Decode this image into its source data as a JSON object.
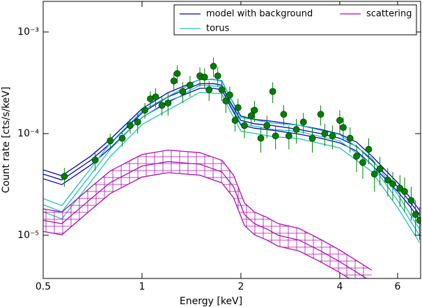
{
  "chart_data": {
    "type": "line",
    "xlabel": "Energy [keV]",
    "ylabel": "Count rate [cts/s/keV]",
    "xlog": true,
    "ylog": true,
    "xlim": [
      0.5,
      7.05
    ],
    "ylim": [
      3.76e-06,
      0.002
    ],
    "xticks": [
      0.5,
      1,
      2,
      4,
      6
    ],
    "yticks": [
      {
        "value": 1e-05,
        "label": "10⁻⁵"
      },
      {
        "value": 0.0001,
        "label": "10⁻⁴"
      },
      {
        "value": 0.001,
        "label": "10⁻³"
      }
    ],
    "legend": "upper right",
    "series": [
      {
        "name": "model with background",
        "color": "#0000cc",
        "x": [
          0.5,
          0.57,
          0.7,
          0.8,
          1.0,
          1.2,
          1.5,
          1.65,
          1.75,
          1.85,
          2.0,
          2.2,
          2.5,
          3.0,
          3.5,
          4.0,
          4.5,
          5.0,
          5.5,
          6.0,
          6.5,
          7.0
        ],
        "values": [
          4e-05,
          3.5e-05,
          5.5e-05,
          8e-05,
          0.00016,
          0.00023,
          0.00031,
          0.00031,
          0.0003,
          0.00021,
          0.000135,
          0.000125,
          0.00012,
          0.00011,
          0.0001,
          9e-05,
          7.5e-05,
          5.5e-05,
          4e-05,
          3e-05,
          2.2e-05,
          1.6e-05
        ],
        "lower": [
          3.6e-05,
          3.15e-05,
          4.95e-05,
          7.2e-05,
          0.000144,
          0.000207,
          0.000279,
          0.000279,
          0.00027,
          0.000189,
          0.000122,
          0.000113,
          0.000108,
          9.9e-05,
          9e-05,
          8.1e-05,
          6.75e-05,
          4.95e-05,
          3.6e-05,
          2.7e-05,
          1.98e-05,
          1.44e-05
        ],
        "upper": [
          4.4e-05,
          3.85e-05,
          6.05e-05,
          8.8e-05,
          0.000176,
          0.000253,
          0.000341,
          0.000341,
          0.00033,
          0.000231,
          0.000149,
          0.000138,
          0.000132,
          0.000121,
          0.00011,
          9.9e-05,
          8.25e-05,
          6.05e-05,
          4.4e-05,
          3.3e-05,
          2.42e-05,
          1.76e-05
        ]
      },
      {
        "name": "torus",
        "color": "#20c0c0",
        "x": [
          0.5,
          0.57,
          0.7,
          0.8,
          1.0,
          1.5,
          1.75,
          1.85,
          2.0,
          2.5,
          3.0,
          4.0,
          5.0,
          6.0,
          7.0
        ],
        "values": [
          2e-05,
          1.7e-05,
          4e-05,
          7e-05,
          0.000145,
          0.0003,
          0.00029,
          0.0002,
          0.000125,
          0.00011,
          0.000105,
          8.5e-05,
          5e-05,
          2.2e-05,
          1e-05
        ],
        "lower": [
          1.7e-05,
          1.45e-05,
          3.4e-05,
          5.95e-05,
          0.000123,
          0.000255,
          0.000247,
          0.00017,
          0.000106,
          9.35e-05,
          8.93e-05,
          7.23e-05,
          4.25e-05,
          1.87e-05,
          8.5e-06
        ],
        "upper": [
          2.3e-05,
          1.96e-05,
          4.6e-05,
          8.05e-05,
          0.000167,
          0.000345,
          0.000334,
          0.00023,
          0.000144,
          0.000127,
          0.000121,
          9.78e-05,
          5.75e-05,
          2.53e-05,
          1.15e-05
        ]
      },
      {
        "name": "scattering",
        "color": "#b010b0",
        "x": [
          0.5,
          0.57,
          0.7,
          0.8,
          1.0,
          1.2,
          1.5,
          1.75,
          1.9,
          2.05,
          2.2,
          2.4,
          2.6,
          3.0,
          3.5,
          4.0,
          5.0
        ],
        "values": [
          1.4e-05,
          1.3e-05,
          2.3e-05,
          3.3e-05,
          4.8e-05,
          5.3e-05,
          5e-05,
          4.2e-05,
          3e-05,
          1.6e-05,
          1.3e-05,
          1.15e-05,
          1e-05,
          9e-06,
          7e-06,
          5.5e-06,
          3.5e-06
        ],
        "lower": [
          1.09e-05,
          1.01e-05,
          1.79e-05,
          2.57e-05,
          3.74e-05,
          4.13e-05,
          3.9e-05,
          3.28e-05,
          2.34e-05,
          1.25e-05,
          1.01e-05,
          8.97e-06,
          7.8e-06,
          7.02e-06,
          5.46e-06,
          4.29e-06,
          2.73e-06
        ],
        "upper": [
          1.82e-05,
          1.69e-05,
          2.99e-05,
          4.29e-05,
          6.24e-05,
          6.89e-05,
          6.5e-05,
          5.46e-05,
          3.9e-05,
          2.08e-05,
          1.69e-05,
          1.5e-05,
          1.3e-05,
          1.17e-05,
          9.1e-06,
          7.15e-06,
          4.55e-06
        ],
        "hatch": true
      }
    ],
    "points": {
      "color": "#008000",
      "x": [
        0.58,
        0.72,
        0.8,
        0.87,
        0.92,
        0.97,
        1.02,
        1.06,
        1.1,
        1.15,
        1.2,
        1.25,
        1.28,
        1.33,
        1.4,
        1.5,
        1.55,
        1.6,
        1.65,
        1.7,
        1.75,
        1.8,
        1.85,
        1.92,
        1.96,
        2.05,
        2.15,
        2.2,
        2.3,
        2.4,
        2.5,
        2.55,
        2.7,
        2.8,
        2.95,
        3.1,
        3.3,
        3.5,
        3.6,
        3.8,
        4.0,
        4.1,
        4.3,
        4.5,
        4.7,
        4.9,
        5.1,
        5.3,
        5.6,
        5.8,
        6.1,
        6.3,
        6.6,
        6.8,
        7.0
      ],
      "values": [
        3.8e-05,
        5.5e-05,
        8.5e-05,
        9e-05,
        0.00012,
        0.00013,
        0.00017,
        0.00022,
        0.00023,
        0.00019,
        0.0002,
        0.00033,
        0.00039,
        0.00026,
        0.0003,
        0.00037,
        0.00036,
        0.00027,
        0.00046,
        0.00037,
        0.00027,
        0.00021,
        0.00024,
        0.000135,
        0.00018,
        0.00012,
        0.00015,
        0.00017,
        9e-05,
        0.00012,
        0.00026,
        9.5e-05,
        0.000155,
        9.5e-05,
        0.00011,
        0.00013,
        9e-05,
        0.000155,
        0.0001,
        9.5e-05,
        0.000135,
        0.000115,
        9e-05,
        6e-05,
        5.2e-05,
        7e-05,
        4e-05,
        4.5e-05,
        3.5e-05,
        3.2e-05,
        2.9e-05,
        2.7e-05,
        2.2e-05,
        1.6e-05,
        1.4e-05
      ],
      "errors": [
        8e-06,
        1.2e-05,
        1.5e-05,
        1.5e-05,
        2e-05,
        3e-05,
        3e-05,
        4e-05,
        5e-05,
        4e-05,
        5e-05,
        7e-05,
        8e-05,
        6e-05,
        7e-05,
        8e-05,
        8e-05,
        6e-05,
        0.0001,
        8e-05,
        6e-05,
        5e-05,
        5e-05,
        3e-05,
        4e-05,
        3e-05,
        3e-05,
        4e-05,
        2.5e-05,
        3e-05,
        6e-05,
        2.5e-05,
        3.5e-05,
        2.5e-05,
        3e-05,
        3e-05,
        2.5e-05,
        3.5e-05,
        2.5e-05,
        2.5e-05,
        3.5e-05,
        3e-05,
        2.5e-05,
        1.8e-05,
        1.6e-05,
        2e-05,
        1.3e-05,
        1.4e-05,
        1.1e-05,
        1e-05,
        1e-05,
        1e-05,
        8e-06,
        6e-06,
        5e-06
      ]
    }
  }
}
